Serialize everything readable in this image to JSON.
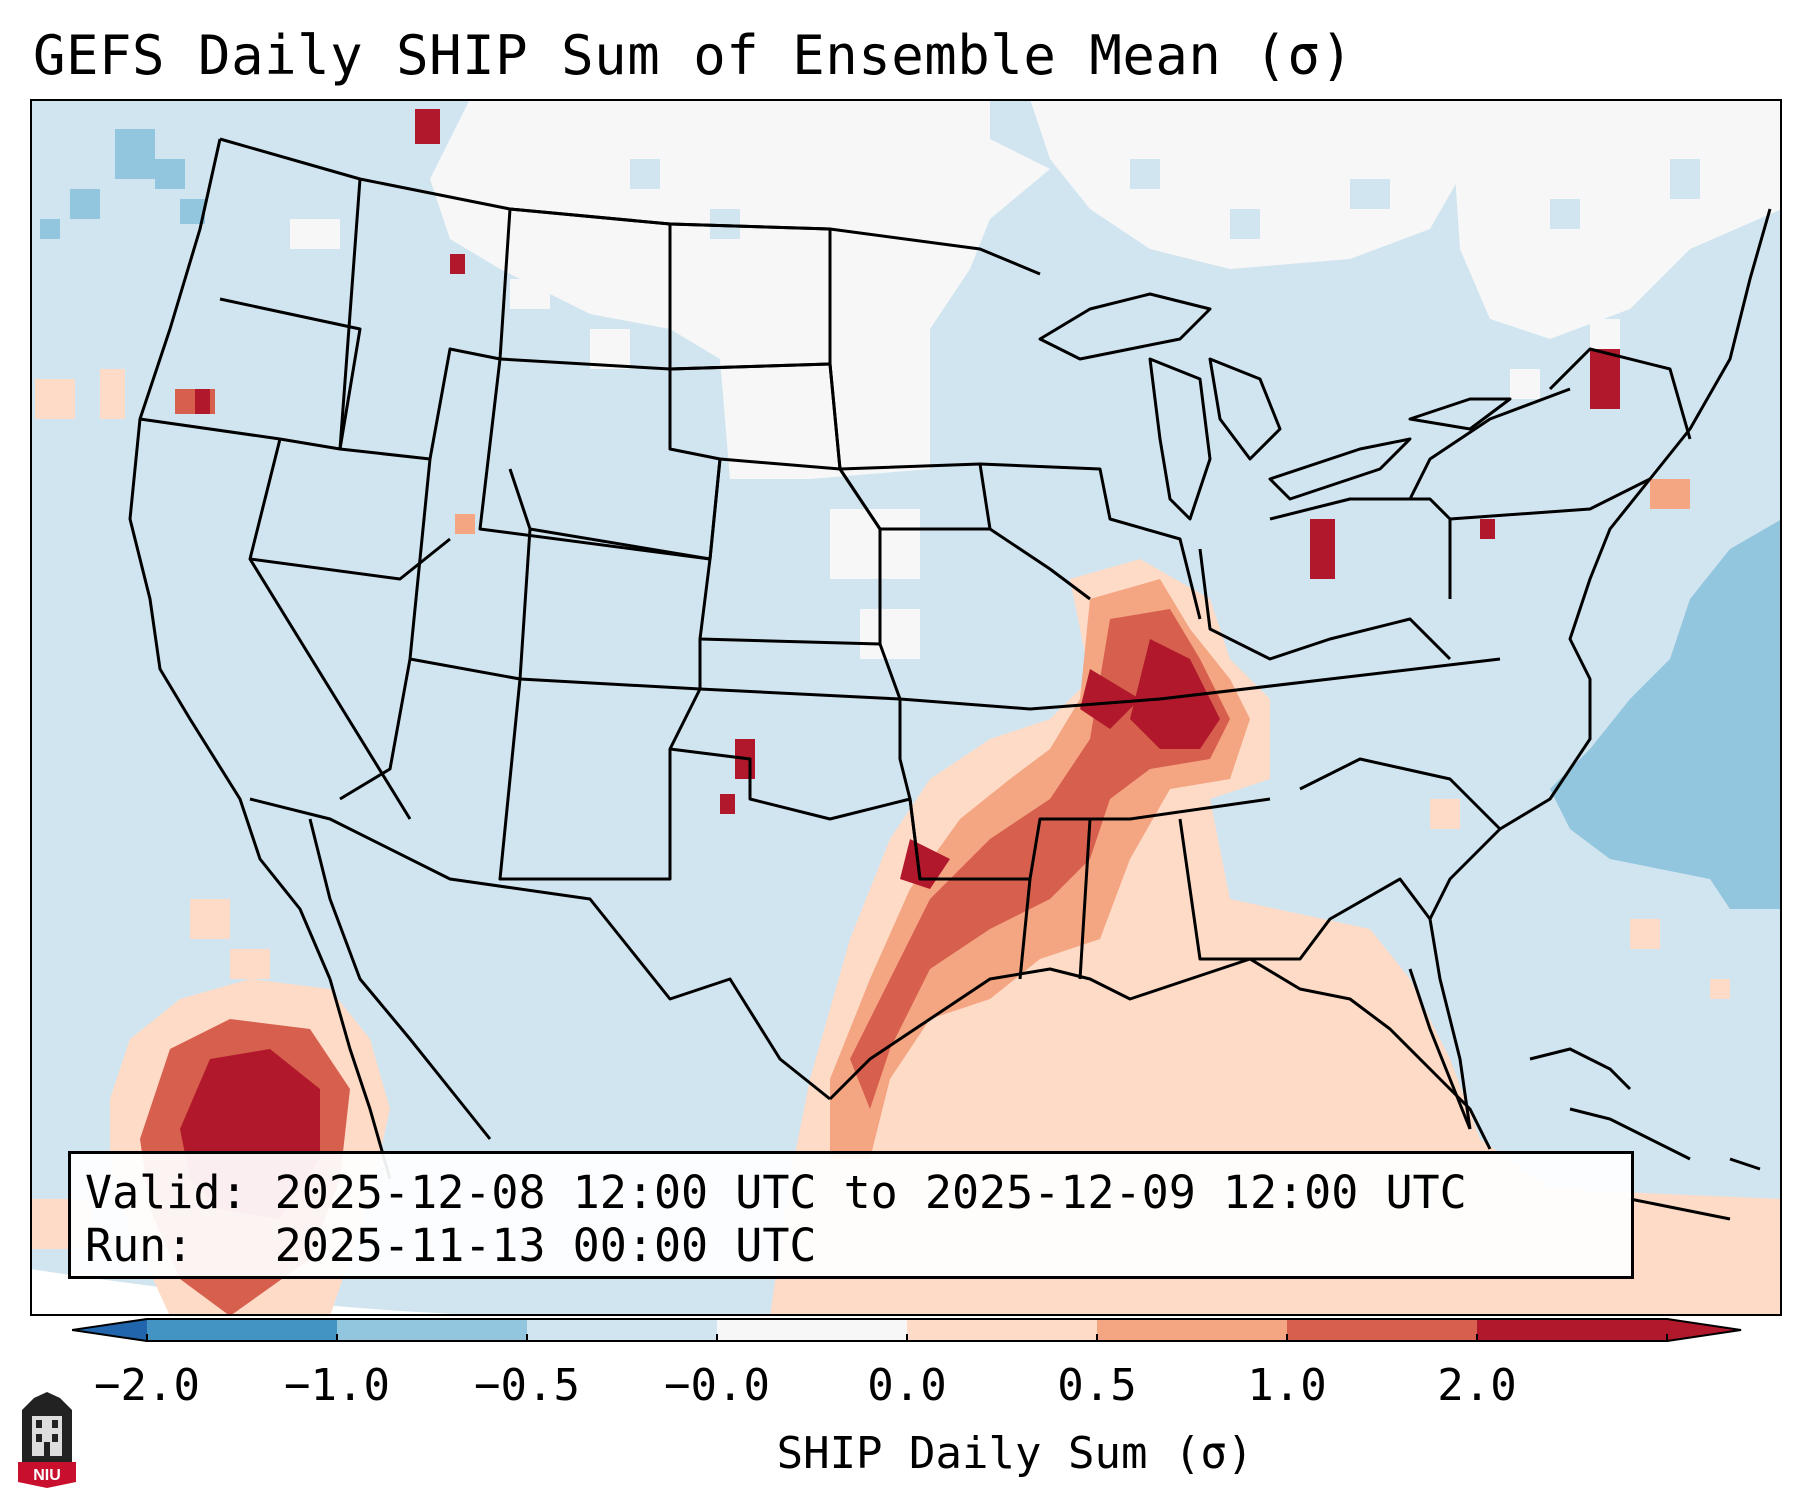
{
  "title": "GEFS Daily SHIP Sum of Ensemble Mean (σ)",
  "info": {
    "valid_label": "Valid:",
    "valid_value": "2025-12-08 12:00 UTC to 2025-12-09 12:00 UTC",
    "run_label": "Run:",
    "run_value": "2025-11-13 00:00 UTC"
  },
  "colorbar": {
    "label": "SHIP Daily Sum (σ)",
    "ticks": [
      "−2.0",
      "−1.0",
      "−0.5",
      "−0.0",
      "0.0",
      "0.5",
      "1.0",
      "2.0"
    ],
    "colors": [
      "#4393c3",
      "#92c5de",
      "#d1e5f0",
      "#f7f7f7",
      "#fddbc7",
      "#f4a582",
      "#d6604d",
      "#b2182b"
    ],
    "extend_low_color": "#2166ac",
    "extend_high_color": "#b2182b"
  },
  "map": {
    "background_color": "#d1e5f0",
    "region": "Contiguous United States",
    "features": [
      {
        "name": "Southern Plains to Gulf Coast positive SHIP",
        "level": "0.5 to 2.0"
      },
      {
        "name": "Lower Ohio / mid-Mississippi valley maximum",
        "level": "1.0 to 2.0"
      },
      {
        "name": "Eastern Pacific off Baja positive SHIP",
        "level": "1.0 to 2.0"
      },
      {
        "name": "Western Atlantic negative SHIP",
        "level": "-1.0 to -0.5"
      },
      {
        "name": "Northern Plains near-zero",
        "level": "-0.0 to 0.0"
      }
    ]
  },
  "logo": {
    "text": "NIU"
  }
}
